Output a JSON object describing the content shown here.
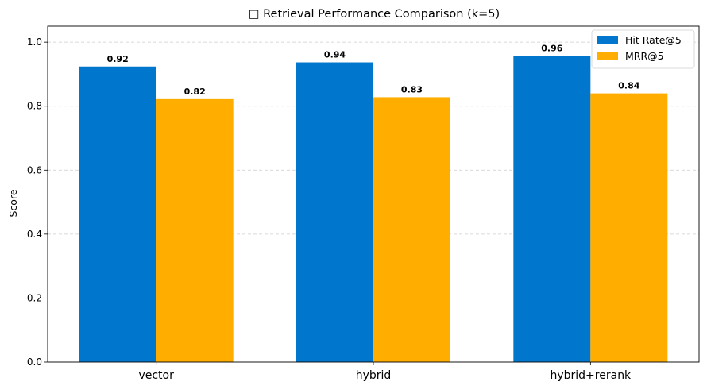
{
  "chart_data": {
    "type": "bar",
    "title": "□ Retrieval Performance Comparison (k=5)",
    "xlabel": "",
    "ylabel": "Score",
    "categories": [
      "vector",
      "hybrid",
      "hybrid+rerank"
    ],
    "series": [
      {
        "name": "Hit Rate@5",
        "values": [
          0.924,
          0.937,
          0.957
        ],
        "labels": [
          "0.92",
          "0.94",
          "0.96"
        ]
      },
      {
        "name": "MRR@5",
        "values": [
          0.822,
          0.828,
          0.84
        ],
        "labels": [
          "0.82",
          "0.83",
          "0.84"
        ]
      }
    ],
    "ylim": [
      0,
      1.05
    ],
    "yticks": [
      "0.0",
      "0.2",
      "0.4",
      "0.6",
      "0.8",
      "1.0"
    ],
    "grid": "y-dashed",
    "legend_position": "top-right"
  },
  "colors": {
    "series": [
      "#0077cc",
      "#ffae00"
    ],
    "grid": "#cccccc",
    "axis": "#000000"
  }
}
